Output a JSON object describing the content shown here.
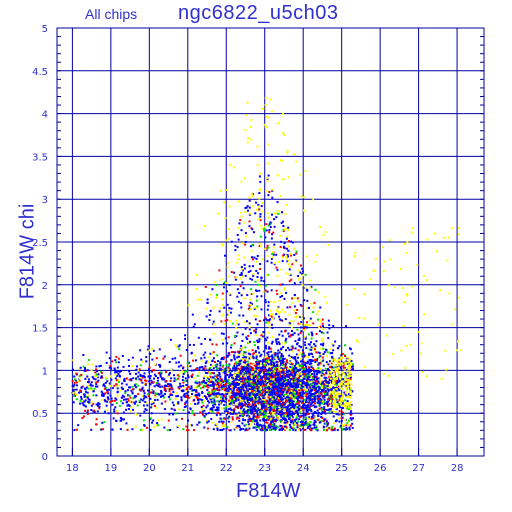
{
  "chart_data": {
    "type": "scatter",
    "subtitle": "All chips",
    "title": "ngc6822_u5ch03",
    "xlabel": "F814W",
    "ylabel": "F814W chi",
    "xlim": [
      17.6,
      28.7
    ],
    "ylim": [
      0,
      5
    ],
    "xticks": [
      18,
      19,
      20,
      21,
      22,
      23,
      24,
      25,
      26,
      27,
      28
    ],
    "yticks": [
      0,
      0.5,
      1,
      1.5,
      2,
      2.5,
      3,
      3.5,
      4,
      4.5,
      5
    ],
    "ytick_labels": [
      "0",
      "0.5",
      "1",
      "1.5",
      "2",
      "2.5",
      "3",
      "3.5",
      "4",
      "4.5",
      "5"
    ],
    "grid": true,
    "series_colors": [
      "#0000ff",
      "#ff0000",
      "#00e000",
      "#ffff00"
    ],
    "series_weights": [
      0.62,
      0.14,
      0.1,
      0.14
    ],
    "distribution": {
      "mag_min": 18.0,
      "mag_max": 25.3,
      "mag_peak": 23.2,
      "chi_floor": 0.3,
      "chi_core_center": 0.8,
      "chi_core_sigma": 0.18,
      "upper_envelope": [
        [
          18.0,
          1.0
        ],
        [
          20.0,
          1.3
        ],
        [
          21.0,
          1.6
        ],
        [
          22.0,
          2.4
        ],
        [
          23.0,
          3.4
        ],
        [
          23.5,
          2.8
        ],
        [
          24.0,
          2.2
        ],
        [
          25.0,
          1.4
        ],
        [
          25.3,
          1.1
        ]
      ],
      "yellow_faint_tail": [
        25.3,
        28.2
      ]
    }
  }
}
